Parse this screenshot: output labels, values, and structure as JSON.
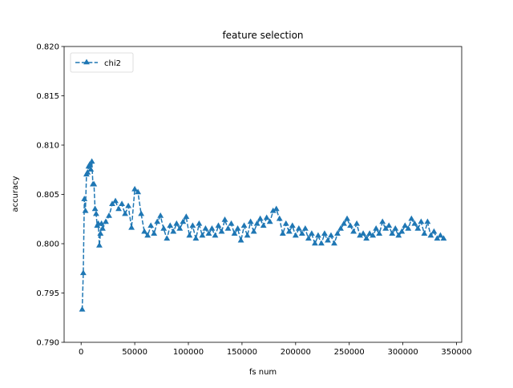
{
  "chart_data": {
    "type": "line",
    "title": "feature  selection",
    "xlabel": "fs num",
    "ylabel": "accuracy",
    "x": [
      1000,
      2000,
      3000,
      4000,
      5000,
      6000,
      7000,
      8000,
      9000,
      10000,
      11000,
      12000,
      13000,
      14000,
      15000,
      16000,
      17000,
      18000,
      19000,
      20000,
      23000,
      26000,
      29000,
      32000,
      35000,
      38000,
      41000,
      44000,
      47000,
      50000,
      53000,
      56000,
      59000,
      62000,
      65000,
      68000,
      71000,
      74000,
      77000,
      80000,
      83000,
      86000,
      89000,
      92000,
      95000,
      98000,
      101000,
      104000,
      107000,
      110000,
      113000,
      116000,
      119000,
      122000,
      125000,
      128000,
      131000,
      134000,
      137000,
      140000,
      143000,
      146000,
      149000,
      152000,
      155000,
      158000,
      161000,
      164000,
      167000,
      170000,
      173000,
      176000,
      179000,
      182000,
      185000,
      188000,
      191000,
      194000,
      197000,
      200000,
      203000,
      206000,
      209000,
      212000,
      215000,
      218000,
      221000,
      224000,
      227000,
      230000,
      233000,
      236000,
      239000,
      242000,
      245000,
      248000,
      251000,
      254000,
      257000,
      260000,
      263000,
      266000,
      269000,
      272000,
      275000,
      278000,
      281000,
      284000,
      287000,
      290000,
      293000,
      296000,
      299000,
      302000,
      305000,
      308000,
      311000,
      314000,
      317000,
      320000,
      323000,
      326000,
      329000,
      332000,
      335000,
      338000
    ],
    "series": [
      {
        "name": "chi2",
        "color": "#1f77b4",
        "values": [
          0.7933,
          0.797,
          0.8045,
          0.8033,
          0.807,
          0.8072,
          0.8078,
          0.808,
          0.8075,
          0.8083,
          0.806,
          0.806,
          0.8035,
          0.803,
          0.8018,
          0.802,
          0.7998,
          0.801,
          0.802,
          0.8015,
          0.8022,
          0.8028,
          0.804,
          0.8043,
          0.8035,
          0.804,
          0.803,
          0.8038,
          0.8016,
          0.8055,
          0.8052,
          0.803,
          0.8012,
          0.8008,
          0.8018,
          0.801,
          0.8022,
          0.8028,
          0.8015,
          0.8005,
          0.8018,
          0.8012,
          0.802,
          0.8015,
          0.8022,
          0.8027,
          0.8008,
          0.8018,
          0.8005,
          0.802,
          0.8008,
          0.8015,
          0.801,
          0.8015,
          0.8008,
          0.8018,
          0.8012,
          0.8024,
          0.8015,
          0.802,
          0.801,
          0.8015,
          0.8003,
          0.8018,
          0.8008,
          0.8022,
          0.8012,
          0.802,
          0.8025,
          0.8018,
          0.8026,
          0.8022,
          0.8033,
          0.8035,
          0.8025,
          0.801,
          0.802,
          0.8012,
          0.8018,
          0.8008,
          0.8015,
          0.801,
          0.8015,
          0.8005,
          0.801,
          0.8,
          0.8008,
          0.8,
          0.801,
          0.8003,
          0.8008,
          0.8,
          0.801,
          0.8015,
          0.802,
          0.8025,
          0.8018,
          0.8012,
          0.802,
          0.8008,
          0.801,
          0.8005,
          0.801,
          0.8008,
          0.8015,
          0.801,
          0.8022,
          0.8015,
          0.8018,
          0.801,
          0.8015,
          0.8008,
          0.8012,
          0.8018,
          0.8015,
          0.8025,
          0.802,
          0.8015,
          0.8022,
          0.801,
          0.8022,
          0.8008,
          0.8012,
          0.8005,
          0.8008,
          0.8005
        ]
      }
    ],
    "xlim": [
      -15850,
      354850
    ],
    "xticks": [
      0,
      50000,
      100000,
      150000,
      200000,
      250000,
      300000,
      350000
    ],
    "ylim": [
      0.79,
      0.82
    ],
    "yticks": [
      {
        "value": 0.79,
        "label": "0.790"
      },
      {
        "value": 0.795,
        "label": "0.795"
      },
      {
        "value": 0.8,
        "label": "0.800"
      },
      {
        "value": 0.805,
        "label": "0.805"
      },
      {
        "value": 0.81,
        "label": "0.810"
      },
      {
        "value": 0.815,
        "label": "0.815"
      },
      {
        "value": 0.82,
        "label": "0.820"
      }
    ],
    "legend": "upper left",
    "grid": false
  }
}
